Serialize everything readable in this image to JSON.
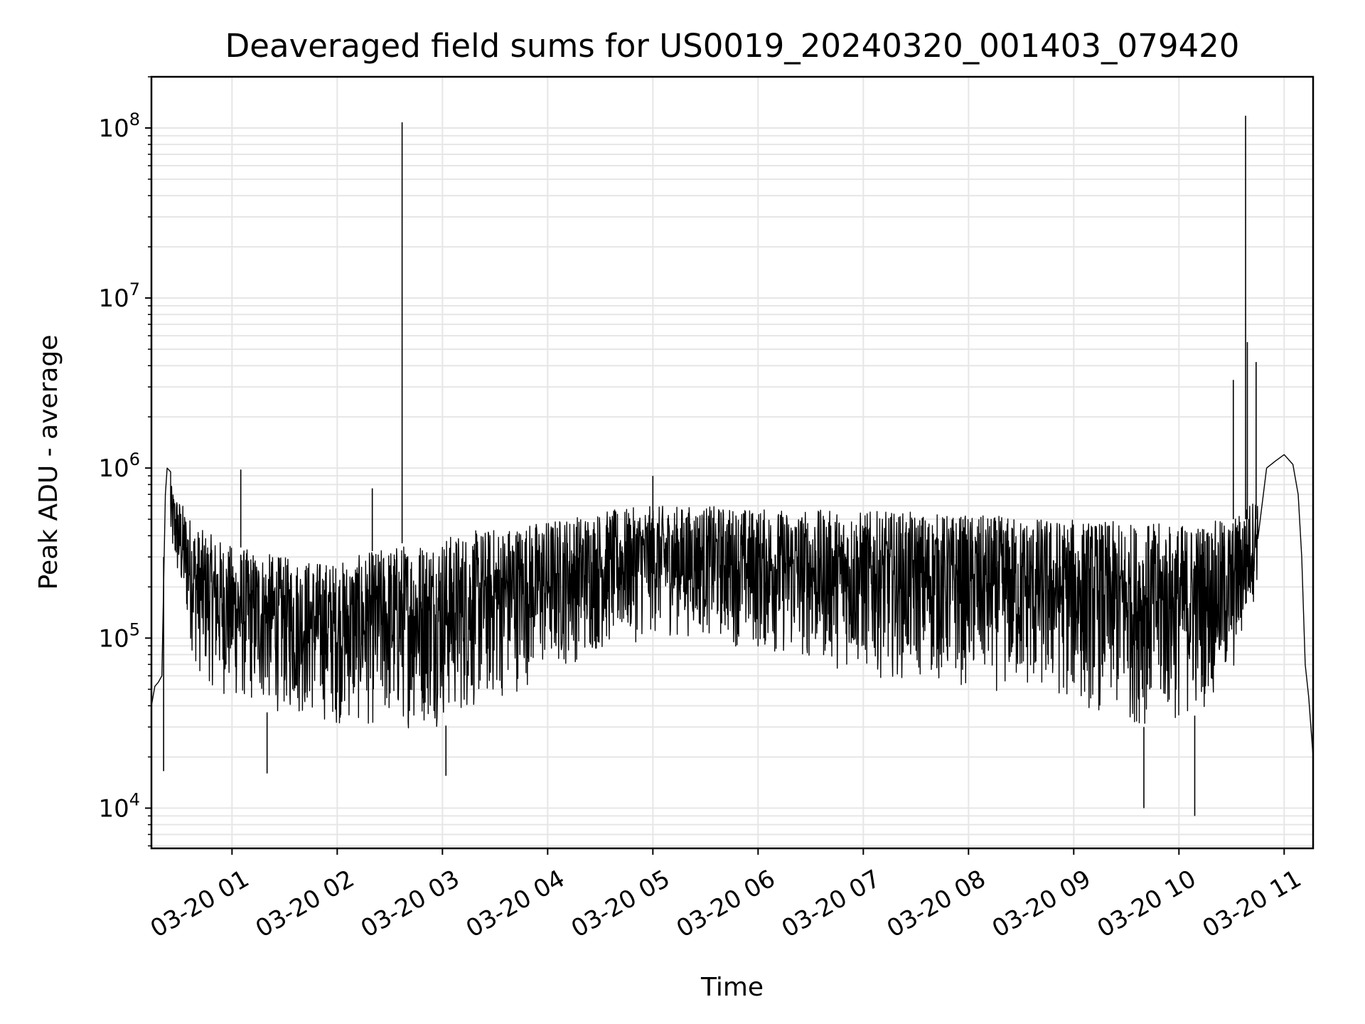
{
  "chart_data": {
    "type": "line",
    "title": "Deaveraged field sums for US0019_20240320_001403_079420",
    "xlabel": "Time",
    "ylabel": "Peak ADU - average",
    "yscale": "log",
    "ylim": [
      5800,
      200000000
    ],
    "xlim": [
      "2024-03-20 00:14:03",
      "2024-03-20 11:16:30"
    ],
    "grid": true,
    "legend": "none",
    "colors": {
      "line": "#000000",
      "grid": "#e6e6e6",
      "axes": "#000000"
    },
    "x_ticks": [
      {
        "value": "2024-03-20 01:00",
        "label": "03-20 01"
      },
      {
        "value": "2024-03-20 02:00",
        "label": "03-20 02"
      },
      {
        "value": "2024-03-20 03:00",
        "label": "03-20 03"
      },
      {
        "value": "2024-03-20 04:00",
        "label": "03-20 04"
      },
      {
        "value": "2024-03-20 05:00",
        "label": "03-20 05"
      },
      {
        "value": "2024-03-20 06:00",
        "label": "03-20 06"
      },
      {
        "value": "2024-03-20 07:00",
        "label": "03-20 07"
      },
      {
        "value": "2024-03-20 08:00",
        "label": "03-20 08"
      },
      {
        "value": "2024-03-20 09:00",
        "label": "03-20 09"
      },
      {
        "value": "2024-03-20 10:00",
        "label": "03-20 10"
      },
      {
        "value": "2024-03-20 11:00",
        "label": "03-20 11"
      }
    ],
    "y_ticks": [
      {
        "value": 10000,
        "base": "10",
        "exp": "4"
      },
      {
        "value": 100000,
        "base": "10",
        "exp": "5"
      },
      {
        "value": 1000000,
        "base": "10",
        "exp": "6"
      },
      {
        "value": 10000000,
        "base": "10",
        "exp": "7"
      },
      {
        "value": 100000000,
        "base": "10",
        "exp": "8"
      }
    ],
    "series": [
      {
        "x": [
          "2024-03-20 00:14:03",
          "2024-03-20 00:16:00",
          "2024-03-20 00:18:00",
          "2024-03-20 00:20:00",
          "2024-03-20 00:21:00",
          "2024-03-20 00:22:00",
          "2024-03-20 00:23:00",
          "2024-03-20 00:25:00",
          "2024-03-20 00:27:00",
          "2024-03-20 00:30:00",
          "2024-03-20 00:33:00",
          "2024-03-20 00:36:00",
          "2024-03-20 00:40:00",
          "2024-03-20 00:45:00",
          "2024-03-20 00:50:00",
          "2024-03-20 00:55:00",
          "2024-03-20 01:00:00",
          "2024-03-20 01:05:00",
          "2024-03-20 01:10:00",
          "2024-03-20 01:15:00",
          "2024-03-20 01:20:00",
          "2024-03-20 01:25:00",
          "2024-03-20 01:30:00",
          "2024-03-20 01:40:00",
          "2024-03-20 01:50:00",
          "2024-03-20 02:00:00",
          "2024-03-20 02:10:00",
          "2024-03-20 02:20:00",
          "2024-03-20 02:30:00",
          "2024-03-20 02:37:00",
          "2024-03-20 02:45:00",
          "2024-03-20 03:00:00",
          "2024-03-20 03:15:00",
          "2024-03-20 03:30:00",
          "2024-03-20 03:45:00",
          "2024-03-20 04:00:00",
          "2024-03-20 04:15:00",
          "2024-03-20 04:30:00",
          "2024-03-20 04:45:00",
          "2024-03-20 05:00:00",
          "2024-03-20 05:15:00",
          "2024-03-20 05:30:00",
          "2024-03-20 06:00:00",
          "2024-03-20 06:30:00",
          "2024-03-20 07:00:00",
          "2024-03-20 07:30:00",
          "2024-03-20 08:00:00",
          "2024-03-20 08:30:00",
          "2024-03-20 09:00:00",
          "2024-03-20 09:30:00",
          "2024-03-20 10:00:00",
          "2024-03-20 10:20:00",
          "2024-03-20 10:30:00",
          "2024-03-20 10:36:00",
          "2024-03-20 10:40:00",
          "2024-03-20 10:45:00",
          "2024-03-20 10:50:00",
          "2024-03-20 10:55:00",
          "2024-03-20 11:00:00",
          "2024-03-20 11:05:00",
          "2024-03-20 11:08:00",
          "2024-03-20 11:10:00",
          "2024-03-20 11:12:00",
          "2024-03-20 11:14:00",
          "2024-03-20 11:16:30"
        ],
        "y": [
          40000,
          52000,
          55000,
          60000,
          200000,
          700000,
          1000000,
          950000,
          850000,
          600000,
          400000,
          250000,
          180000,
          150000,
          170000,
          160000,
          200000,
          160000,
          150000,
          140000,
          120000,
          110000,
          100000,
          95000,
          90000,
          85000,
          88000,
          90000,
          95000,
          100000,
          110000,
          130000,
          160000,
          180000,
          210000,
          240000,
          260000,
          280000,
          300000,
          320000,
          330000,
          320000,
          310000,
          300000,
          290000,
          285000,
          280000,
          270000,
          260000,
          240000,
          230000,
          240000,
          300000,
          400000,
          550000,
          800000,
          1000000,
          1100000,
          1200000,
          1050000,
          700000,
          300000,
          70000,
          45000,
          20000
        ]
      }
    ],
    "envelope": {
      "x": [
        "2024-03-20 00:25:00",
        "2024-03-20 00:40:00",
        "2024-03-20 01:00:00",
        "2024-03-20 01:30:00",
        "2024-03-20 02:00:00",
        "2024-03-20 02:30:00",
        "2024-03-20 03:00:00",
        "2024-03-20 03:30:00",
        "2024-03-20 04:00:00",
        "2024-03-20 04:30:00",
        "2024-03-20 05:00:00",
        "2024-03-20 05:30:00",
        "2024-03-20 06:00:00",
        "2024-03-20 06:30:00",
        "2024-03-20 07:00:00",
        "2024-03-20 07:30:00",
        "2024-03-20 08:00:00",
        "2024-03-20 08:30:00",
        "2024-03-20 09:00:00",
        "2024-03-20 09:30:00",
        "2024-03-20 10:00:00",
        "2024-03-20 10:30:00",
        "2024-03-20 10:45:00"
      ],
      "upper": [
        800000,
        450000,
        350000,
        300000,
        280000,
        350000,
        400000,
        450000,
        500000,
        560000,
        600000,
        600000,
        580000,
        570000,
        560000,
        550000,
        530000,
        520000,
        500000,
        480000,
        470000,
        500000,
        700000
      ],
      "lower": [
        300000,
        60000,
        40000,
        35000,
        30000,
        28000,
        30000,
        40000,
        60000,
        80000,
        100000,
        100000,
        80000,
        70000,
        60000,
        55000,
        50000,
        45000,
        40000,
        30000,
        30000,
        50000,
        200000
      ]
    },
    "spikes": [
      {
        "x": "2024-03-20 01:05:00",
        "y": 980000
      },
      {
        "x": "2024-03-20 02:20:00",
        "y": 760000
      },
      {
        "x": "2024-03-20 02:37:00",
        "y": 108000000
      },
      {
        "x": "2024-03-20 05:00:00",
        "y": 900000
      },
      {
        "x": "2024-03-20 10:31:00",
        "y": 3300000
      },
      {
        "x": "2024-03-20 10:38:00",
        "y": 118000000
      },
      {
        "x": "2024-03-20 10:39:00",
        "y": 5500000
      },
      {
        "x": "2024-03-20 10:44:00",
        "y": 4200000
      },
      {
        "x": "2024-03-20 01:20:00",
        "y": 16000
      },
      {
        "x": "2024-03-20 03:02:00",
        "y": 15500
      },
      {
        "x": "2024-03-20 09:40:00",
        "y": 10000
      },
      {
        "x": "2024-03-20 10:09:00",
        "y": 9000
      },
      {
        "x": "2024-03-20 00:21:00",
        "y": 16500
      }
    ]
  }
}
